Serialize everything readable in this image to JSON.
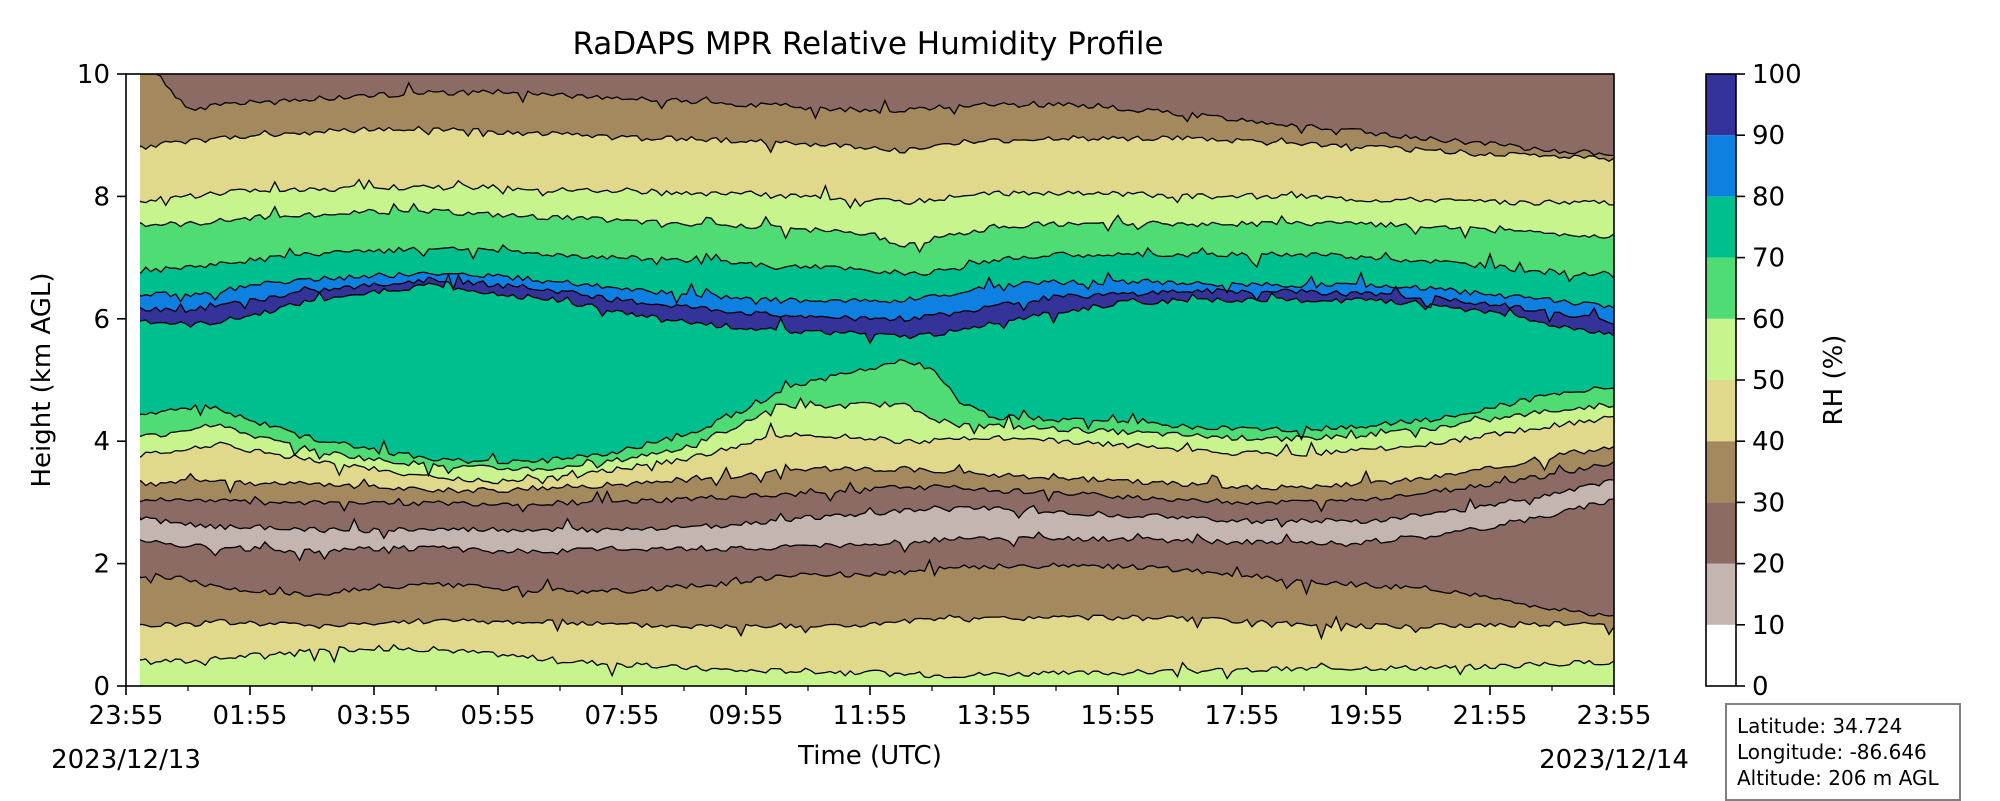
{
  "chart_data": {
    "type": "heatmap",
    "subtype": "filled-contour",
    "title": "RaDAPS MPR Relative Humidity Profile",
    "xlabel": "Time (UTC)",
    "ylabel": "Height (km AGL)",
    "colorbar_label": "RH (%)",
    "x_tick_labels": [
      "23:55",
      "01:55",
      "03:55",
      "05:55",
      "07:55",
      "09:55",
      "11:55",
      "13:55",
      "15:55",
      "17:55",
      "19:55",
      "21:55",
      "23:55"
    ],
    "x_dates": {
      "start": "2023/12/13",
      "end": "2023/12/14"
    },
    "x_hours": [
      0,
      2,
      4,
      6,
      8,
      10,
      12,
      14,
      16,
      18,
      20,
      22,
      24
    ],
    "ylim": [
      0,
      10
    ],
    "y_ticks": [
      0,
      2,
      4,
      6,
      8,
      10
    ],
    "color_levels": [
      0,
      10,
      20,
      30,
      40,
      50,
      60,
      70,
      80,
      90,
      100
    ],
    "level_colors": [
      "#ffffff",
      "#c4b5b1",
      "#8b6b64",
      "#a5895e",
      "#e0d88b",
      "#c8f48d",
      "#4fdc74",
      "#00bf8f",
      "#0e80e2",
      "#333399"
    ],
    "hours": [
      0,
      0.5,
      1,
      1.5,
      2,
      3,
      4,
      5,
      6,
      7,
      8,
      9,
      10,
      10.5,
      11,
      12,
      12.5,
      13,
      13.5,
      14,
      15,
      16,
      17,
      18,
      19,
      20,
      21,
      22,
      23,
      24
    ],
    "boundaries": [
      [
        0.45,
        0.42,
        0.4,
        0.45,
        0.5,
        0.58,
        0.62,
        0.6,
        0.52,
        0.42,
        0.35,
        0.3,
        0.25,
        0.25,
        0.25,
        0.22,
        0.2,
        0.18,
        0.18,
        0.2,
        0.2,
        0.22,
        0.24,
        0.26,
        0.28,
        0.3,
        0.3,
        0.32,
        0.36,
        0.4
      ],
      [
        0.97,
        1.0,
        1.02,
        1.05,
        1.03,
        1.0,
        1.03,
        1.07,
        1.05,
        1.05,
        1.0,
        0.98,
        0.98,
        0.98,
        0.98,
        1.0,
        1.05,
        1.08,
        1.1,
        1.1,
        1.12,
        1.12,
        1.1,
        1.05,
        1.0,
        0.98,
        0.98,
        1.0,
        1.02,
        1.0
      ],
      [
        1.85,
        1.8,
        1.75,
        1.6,
        1.55,
        1.5,
        1.6,
        1.65,
        1.6,
        1.55,
        1.55,
        1.62,
        1.7,
        1.8,
        1.85,
        1.8,
        1.85,
        1.9,
        1.95,
        1.95,
        1.95,
        1.95,
        1.9,
        1.8,
        1.7,
        1.65,
        1.6,
        1.45,
        1.25,
        1.15
      ],
      [
        2.4,
        2.35,
        2.3,
        2.25,
        2.25,
        2.2,
        2.25,
        2.25,
        2.2,
        2.2,
        2.25,
        2.25,
        2.25,
        2.25,
        2.28,
        2.3,
        2.35,
        2.38,
        2.4,
        2.4,
        2.4,
        2.4,
        2.38,
        2.35,
        2.33,
        2.35,
        2.45,
        2.6,
        2.8,
        3.05
      ],
      [
        2.75,
        2.7,
        2.65,
        2.6,
        2.6,
        2.55,
        2.55,
        2.55,
        2.55,
        2.55,
        2.55,
        2.6,
        2.65,
        2.7,
        2.75,
        2.8,
        2.85,
        2.88,
        2.9,
        2.9,
        2.85,
        2.8,
        2.75,
        2.7,
        2.7,
        2.7,
        2.8,
        2.95,
        3.15,
        3.35
      ],
      [
        3.05,
        3.05,
        3.05,
        3.05,
        3.0,
        3.0,
        3.0,
        2.98,
        2.98,
        3.0,
        3.0,
        3.05,
        3.1,
        3.1,
        3.15,
        3.2,
        3.25,
        3.25,
        3.25,
        3.2,
        3.15,
        3.1,
        3.05,
        3.0,
        3.0,
        3.05,
        3.15,
        3.3,
        3.45,
        3.65
      ],
      [
        3.35,
        3.3,
        3.35,
        3.35,
        3.3,
        3.3,
        3.25,
        3.2,
        3.2,
        3.25,
        3.3,
        3.35,
        3.45,
        3.5,
        3.55,
        3.55,
        3.55,
        3.5,
        3.5,
        3.45,
        3.4,
        3.35,
        3.3,
        3.25,
        3.25,
        3.3,
        3.4,
        3.55,
        3.75,
        3.9
      ],
      [
        3.75,
        3.8,
        3.9,
        3.95,
        3.85,
        3.7,
        3.55,
        3.4,
        3.35,
        3.4,
        3.55,
        3.7,
        3.95,
        4.1,
        4.1,
        4.05,
        4.0,
        4.0,
        4.05,
        4.05,
        4.0,
        3.95,
        3.85,
        3.8,
        3.8,
        3.85,
        3.95,
        4.1,
        4.25,
        4.4
      ],
      [
        4.05,
        4.1,
        4.2,
        4.3,
        4.1,
        3.85,
        3.7,
        3.6,
        3.55,
        3.55,
        3.7,
        3.9,
        4.3,
        4.6,
        4.55,
        4.6,
        4.6,
        4.4,
        4.25,
        4.25,
        4.2,
        4.15,
        4.1,
        4.05,
        4.05,
        4.1,
        4.2,
        4.35,
        4.5,
        4.6
      ],
      [
        4.35,
        4.45,
        4.55,
        4.55,
        4.35,
        4.05,
        3.85,
        3.7,
        3.65,
        3.7,
        3.85,
        4.1,
        4.5,
        4.8,
        4.95,
        5.2,
        5.3,
        5.2,
        4.6,
        4.4,
        4.35,
        4.3,
        4.25,
        4.2,
        4.2,
        4.25,
        4.35,
        4.55,
        4.75,
        4.9
      ],
      [
        6.0,
        5.95,
        5.9,
        5.95,
        6.05,
        6.3,
        6.45,
        6.55,
        6.4,
        6.3,
        6.1,
        5.95,
        5.85,
        5.8,
        5.8,
        5.75,
        5.7,
        5.75,
        5.8,
        5.95,
        6.1,
        6.25,
        6.3,
        6.3,
        6.3,
        6.3,
        6.25,
        6.1,
        5.9,
        5.75
      ],
      [
        6.2,
        6.15,
        6.15,
        6.2,
        6.3,
        6.45,
        6.55,
        6.65,
        6.55,
        6.45,
        6.3,
        6.2,
        6.1,
        6.05,
        6.05,
        6.0,
        6.0,
        6.05,
        6.1,
        6.25,
        6.35,
        6.4,
        6.45,
        6.45,
        6.45,
        6.4,
        6.35,
        6.25,
        6.1,
        5.95
      ],
      [
        6.4,
        6.4,
        6.4,
        6.45,
        6.55,
        6.65,
        6.7,
        6.75,
        6.7,
        6.6,
        6.5,
        6.4,
        6.35,
        6.3,
        6.3,
        6.3,
        6.3,
        6.35,
        6.45,
        6.55,
        6.6,
        6.6,
        6.6,
        6.55,
        6.55,
        6.55,
        6.5,
        6.4,
        6.3,
        6.2
      ],
      [
        6.8,
        6.8,
        6.85,
        6.9,
        6.95,
        7.05,
        7.1,
        7.15,
        7.1,
        7.05,
        7.0,
        6.95,
        6.9,
        6.85,
        6.85,
        6.8,
        6.75,
        6.75,
        6.85,
        6.95,
        7.05,
        7.05,
        7.05,
        7.05,
        7.05,
        7.0,
        6.95,
        6.85,
        6.75,
        6.7
      ],
      [
        7.5,
        7.55,
        7.55,
        7.6,
        7.65,
        7.7,
        7.75,
        7.75,
        7.7,
        7.65,
        7.6,
        7.55,
        7.5,
        7.5,
        7.45,
        7.4,
        7.2,
        7.3,
        7.4,
        7.5,
        7.55,
        7.55,
        7.55,
        7.55,
        7.55,
        7.55,
        7.5,
        7.45,
        7.4,
        7.35
      ],
      [
        7.9,
        7.95,
        8.0,
        8.05,
        8.1,
        8.1,
        8.15,
        8.15,
        8.15,
        8.1,
        8.1,
        8.05,
        8.05,
        8.0,
        8.0,
        7.95,
        7.9,
        7.95,
        8.0,
        8.05,
        8.05,
        8.05,
        8.0,
        8.0,
        8.0,
        7.95,
        7.95,
        7.9,
        7.9,
        7.9
      ],
      [
        8.75,
        8.85,
        8.9,
        8.95,
        9.0,
        9.05,
        9.1,
        9.1,
        9.05,
        9.0,
        8.95,
        8.95,
        8.9,
        8.9,
        8.85,
        8.8,
        8.75,
        8.8,
        8.85,
        8.9,
        8.95,
        8.95,
        8.95,
        8.9,
        8.85,
        8.8,
        8.75,
        8.7,
        8.65,
        8.6
      ],
      [
        10.0,
        10.0,
        9.4,
        9.5,
        9.55,
        9.6,
        9.65,
        9.7,
        9.7,
        9.65,
        9.6,
        9.55,
        9.5,
        9.5,
        9.45,
        9.4,
        9.4,
        9.45,
        9.5,
        9.5,
        9.5,
        9.45,
        9.35,
        9.25,
        9.15,
        9.05,
        8.95,
        8.85,
        8.75,
        8.7
      ]
    ],
    "band_levels": [
      [
        40,
        50
      ],
      [
        30,
        40
      ],
      [
        20,
        30
      ],
      [
        10,
        20
      ],
      [
        20,
        30
      ],
      [
        30,
        40
      ],
      [
        40,
        50
      ],
      [
        50,
        60
      ],
      [
        60,
        70
      ],
      [
        70,
        80
      ],
      [
        90,
        100
      ],
      [
        80,
        90
      ],
      [
        70,
        80
      ],
      [
        60,
        70
      ],
      [
        50,
        60
      ],
      [
        40,
        50
      ],
      [
        30,
        40
      ],
      [
        20,
        30
      ],
      [
        10,
        20
      ]
    ]
  },
  "info": {
    "latitude": "Latitude: 34.724",
    "longitude": "Longitude: -86.646",
    "altitude": "Altitude: 206 m AGL"
  }
}
